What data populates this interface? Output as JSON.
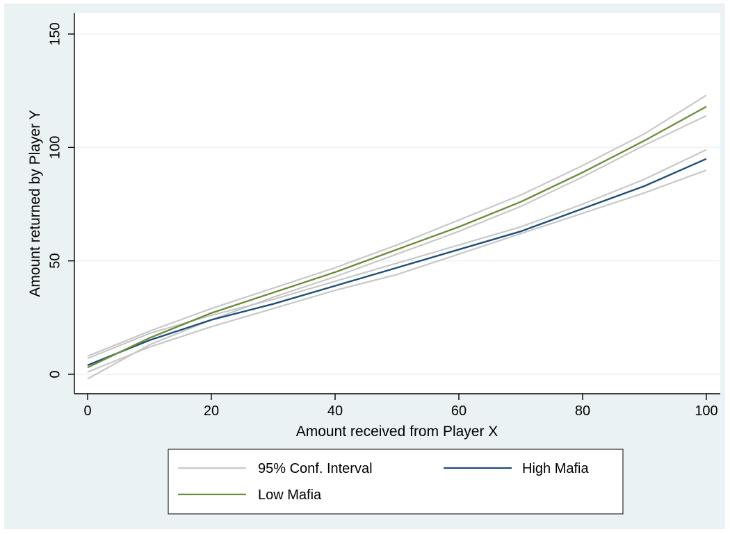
{
  "chart_data": {
    "type": "line",
    "xlabel": "Amount received from Player X",
    "ylabel": "Amount returned by Player Y",
    "xlim": [
      0,
      100
    ],
    "ylim": [
      0,
      150
    ],
    "x_ticks": [
      "0",
      "20",
      "40",
      "60",
      "80",
      "100"
    ],
    "y_ticks": [
      "0",
      "50",
      "100",
      "150"
    ],
    "grid": "horizontal",
    "x": [
      0,
      10,
      20,
      30,
      40,
      50,
      60,
      70,
      80,
      90,
      100
    ],
    "series": [
      {
        "name": "95% Conf. Interval",
        "role": "ci",
        "color": "#c8c8c8",
        "bands": [
          {
            "for": "Low Mafia",
            "lower": [
              -2,
              13,
              24,
              34,
              43,
              53,
              63,
              74,
              87,
              101,
              114
            ],
            "upper": [
              8,
              19,
              29,
              38,
              47,
              57,
              68,
              79,
              92,
              106,
              123
            ]
          },
          {
            "for": "High Mafia",
            "lower": [
              1,
              12,
              21,
              29,
              37,
              44,
              53,
              62,
              71,
              80,
              90
            ],
            "upper": [
              7,
              18,
              26,
              33,
              41,
              49,
              57,
              65,
              75,
              86,
              99
            ]
          }
        ]
      },
      {
        "name": "High Mafia",
        "color": "#1f4e79",
        "values": [
          4,
          15,
          24,
          31,
          39,
          47,
          55,
          63,
          73,
          83,
          95
        ]
      },
      {
        "name": "Low Mafia",
        "color": "#6b8e3a",
        "values": [
          3,
          16,
          27,
          36,
          45,
          55,
          65,
          76,
          89,
          103,
          118
        ]
      }
    ],
    "legend": {
      "position": "bottom",
      "entries": [
        {
          "label": "95% Conf. Interval",
          "color": "#c8c8c8"
        },
        {
          "label": "High Mafia",
          "color": "#1f4e79"
        },
        {
          "label": "Low Mafia",
          "color": "#6b8e3a"
        }
      ]
    }
  }
}
